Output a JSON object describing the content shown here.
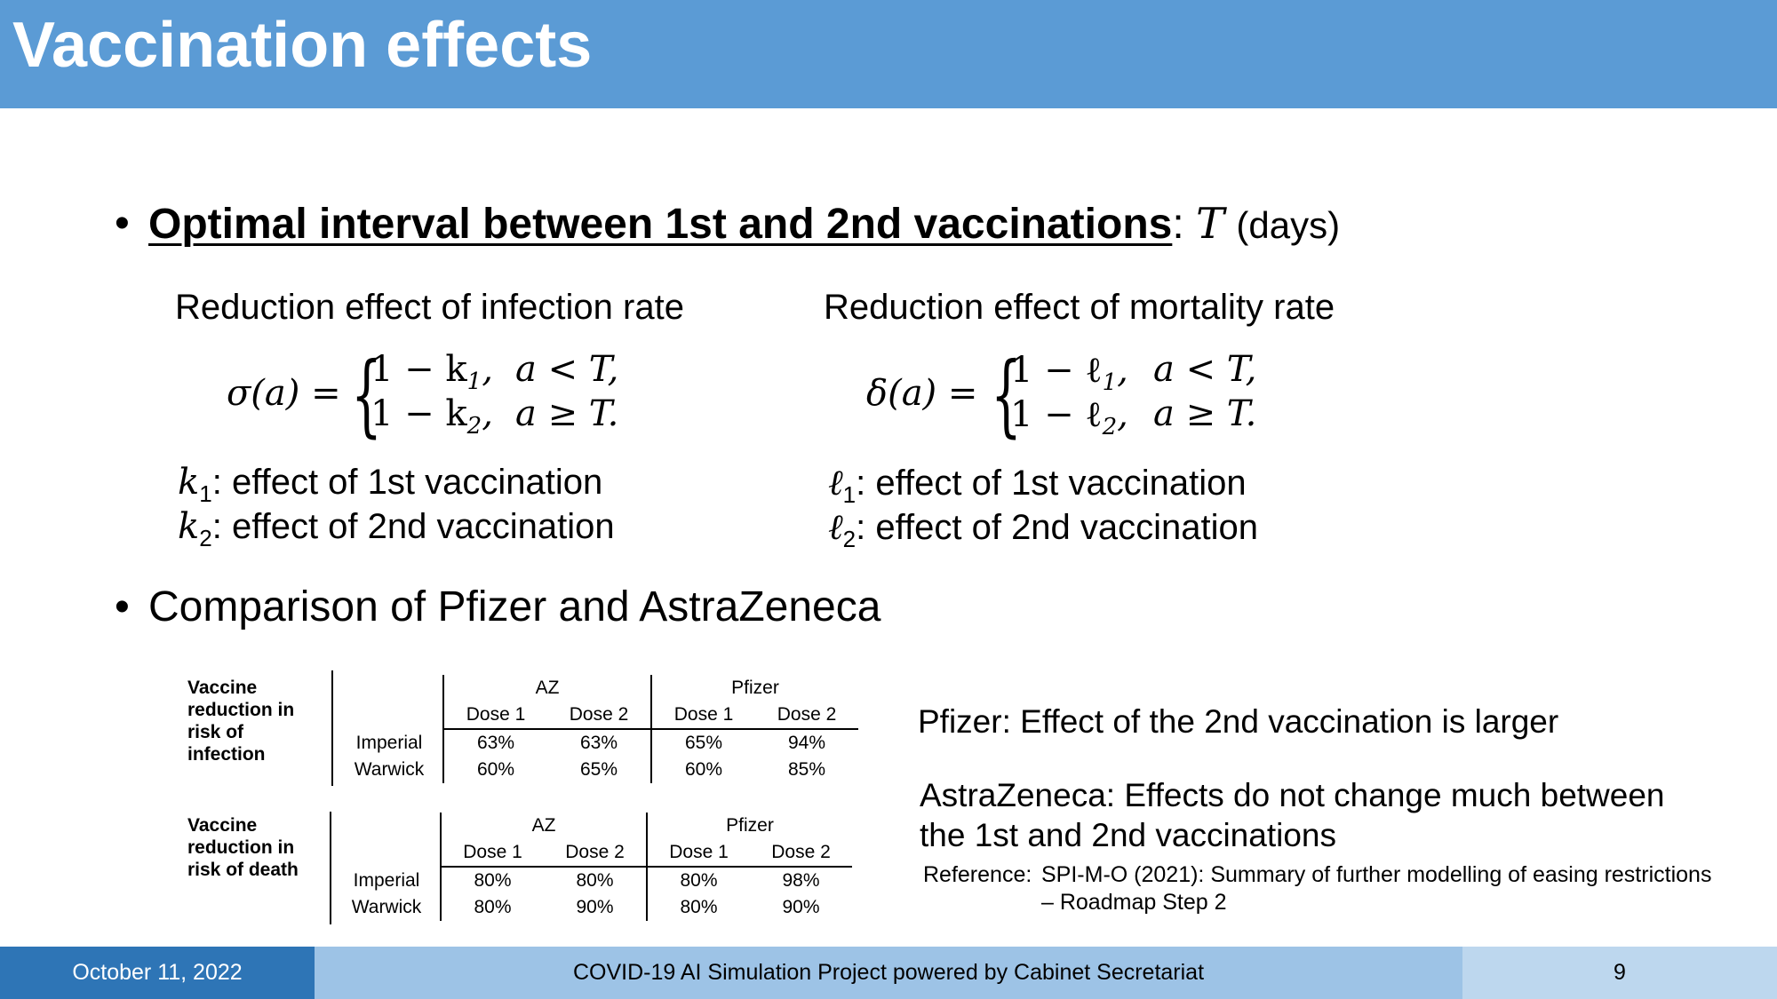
{
  "title": "Vaccination effects",
  "bullet1": {
    "heading": "Optimal interval between 1st and 2nd vaccinations",
    "colon": ":",
    "var": "T",
    "unit": "(days)"
  },
  "infection": {
    "heading": "Reduction effect of infection rate",
    "lhs": "σ(a) =",
    "case1": "1 − k",
    "case1_sub": "1",
    "case1_cond": "a < T,",
    "case2": "1 − k",
    "case2_sub": "2",
    "case2_cond": "a ≥ T.",
    "def1_var": "k",
    "def1_sub": "1",
    "def1_text": ": effect of 1st vaccination",
    "def2_var": "k",
    "def2_sub": "2",
    "def2_text": ": effect of 2nd vaccination"
  },
  "mortality": {
    "heading": "Reduction effect of mortality rate",
    "lhs": "δ(a) =",
    "case1": "1 − ℓ",
    "case1_sub": "1",
    "case1_cond": "a < T,",
    "case2": "1 − ℓ",
    "case2_sub": "2",
    "case2_cond": "a ≥ T.",
    "def1_var": "ℓ",
    "def1_sub": "1",
    "def1_text": ": effect of 1st vaccination",
    "def2_var": "ℓ",
    "def2_sub": "2",
    "def2_text": ": effect of 2nd vaccination"
  },
  "bullet2": {
    "heading": "Comparison of Pfizer and AstraZeneca"
  },
  "table_infection": {
    "label": "Vaccine reduction in risk of infection",
    "groups": [
      "AZ",
      "Pfizer"
    ],
    "doses": [
      "Dose 1",
      "Dose 2",
      "Dose 1",
      "Dose 2"
    ],
    "rows": [
      {
        "name": "Imperial",
        "values": [
          "63%",
          "63%",
          "65%",
          "94%"
        ]
      },
      {
        "name": "Warwick",
        "values": [
          "60%",
          "65%",
          "60%",
          "85%"
        ]
      }
    ]
  },
  "table_death": {
    "label": "Vaccine reduction in risk of death",
    "groups": [
      "AZ",
      "Pfizer"
    ],
    "doses": [
      "Dose 1",
      "Dose 2",
      "Dose 1",
      "Dose 2"
    ],
    "rows": [
      {
        "name": "Imperial",
        "values": [
          "80%",
          "80%",
          "80%",
          "98%"
        ]
      },
      {
        "name": "Warwick",
        "values": [
          "80%",
          "90%",
          "80%",
          "90%"
        ]
      }
    ]
  },
  "notes": {
    "pfizer": "Pfizer: Effect of the 2nd vaccination is larger",
    "astrazeneca_1": "AstraZeneca: Effects do not change much between",
    "astrazeneca_2": "the 1st and 2nd vaccinations",
    "ref_label": "Reference:",
    "ref_line1": "SPI-M-O (2021): Summary of further modelling of easing restrictions",
    "ref_line2": "– Roadmap Step 2"
  },
  "footer": {
    "date": "October 11, 2022",
    "project": "COVID-19 AI Simulation Project powered by Cabinet Secretariat",
    "page": "9"
  },
  "colors": {
    "header": "#5b9bd5",
    "footer_left": "#2e75b6",
    "footer_mid": "#9dc3e6",
    "footer_right": "#bdd7ee"
  }
}
